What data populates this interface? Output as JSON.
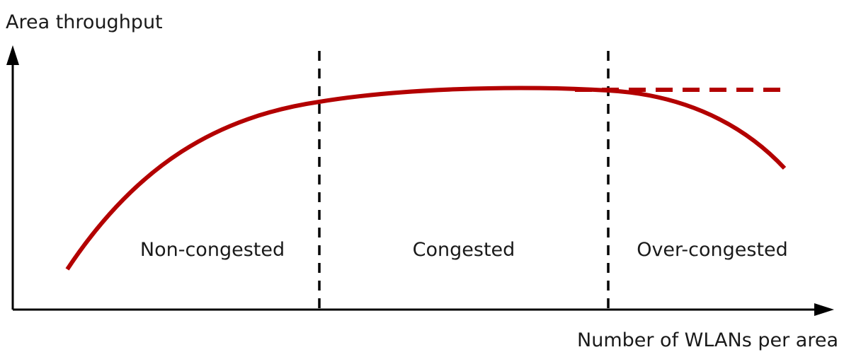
{
  "diagram": {
    "y_axis_label": "Area throughput",
    "x_axis_label": "Number of WLANs per area",
    "regions": [
      {
        "label": "Non-congested"
      },
      {
        "label": "Congested"
      },
      {
        "label": "Over-congested"
      }
    ],
    "colors": {
      "curve": "#b30000",
      "axis": "#000000",
      "divider": "#000000",
      "text": "#1a1a1a"
    },
    "curve_style": "solid",
    "saturation_reference_style": "dashed",
    "divider_style": "dashed"
  }
}
